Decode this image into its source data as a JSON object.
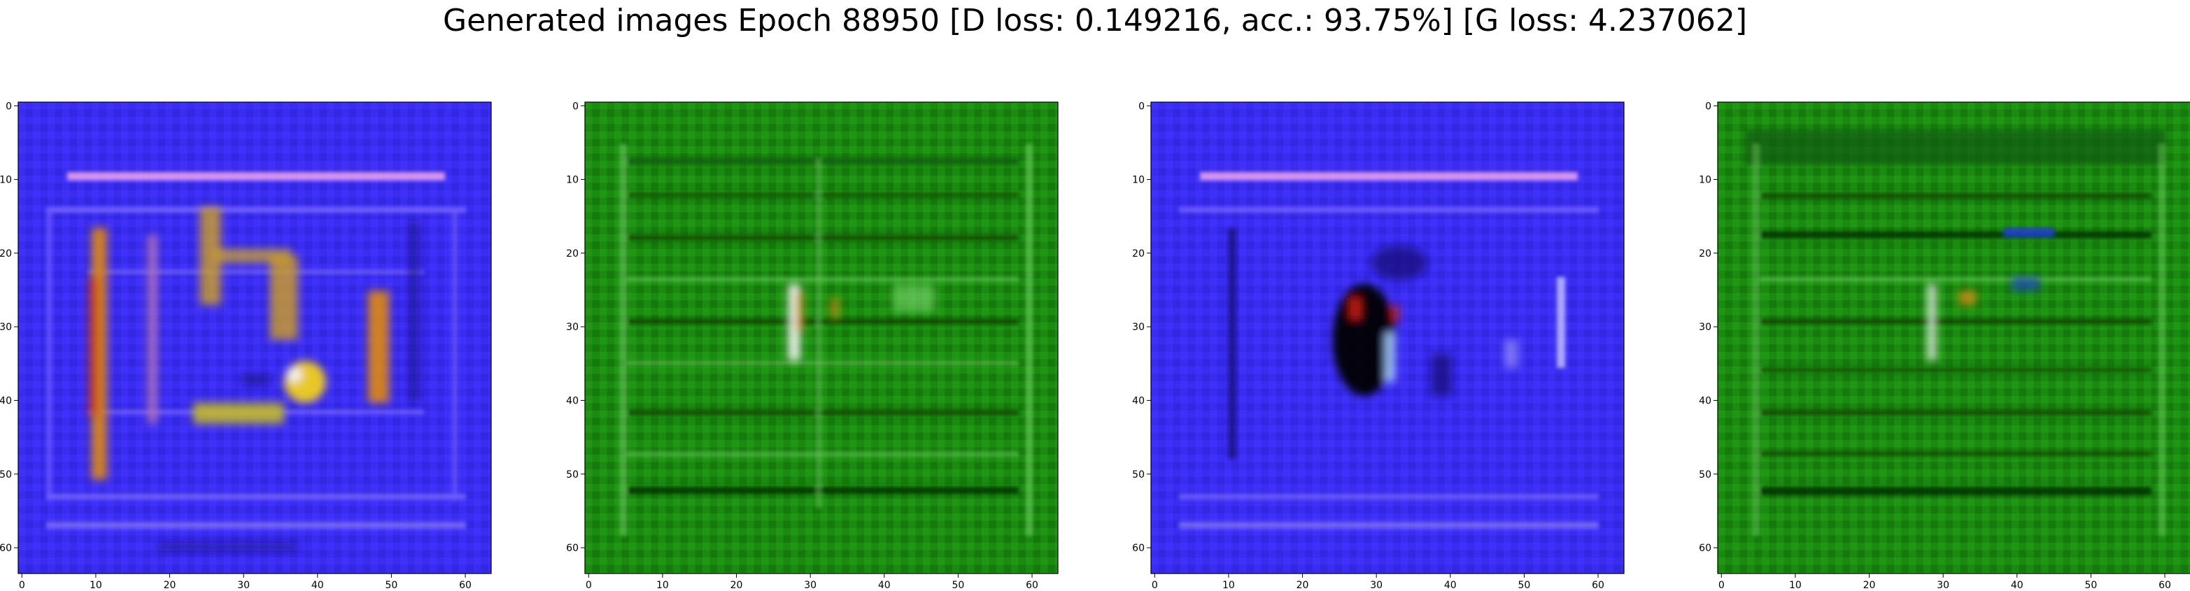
{
  "figure": {
    "title": "Generated images Epoch 88950 [D loss: 0.149216, acc.: 93.75%] [G loss: 4.237062]"
  },
  "panels": [
    {
      "id": "panel-1",
      "palette": "blue"
    },
    {
      "id": "panel-2",
      "palette": "green"
    },
    {
      "id": "panel-3",
      "palette": "blue"
    },
    {
      "id": "panel-4",
      "palette": "green"
    }
  ],
  "axes": {
    "x_ticks": [
      0,
      10,
      20,
      30,
      40,
      50,
      60
    ],
    "y_ticks": [
      0,
      10,
      20,
      30,
      40,
      50,
      60
    ],
    "xlim": [
      -0.5,
      63.5
    ],
    "ylim": [
      63.5,
      -0.5
    ]
  },
  "colors": {
    "blue_base": "#3a2cf0",
    "blue_light": "#6e5cff",
    "blue_pink": "#d98cf0",
    "blue_dark": "#1a1480",
    "green_base": "#1a8a10",
    "green_light": "#7fd870",
    "green_dark": "#053005",
    "orange": "#e08a10",
    "yellow": "#f2d020",
    "red": "#d02010",
    "white": "#f4f4f4",
    "black": "#050505"
  }
}
